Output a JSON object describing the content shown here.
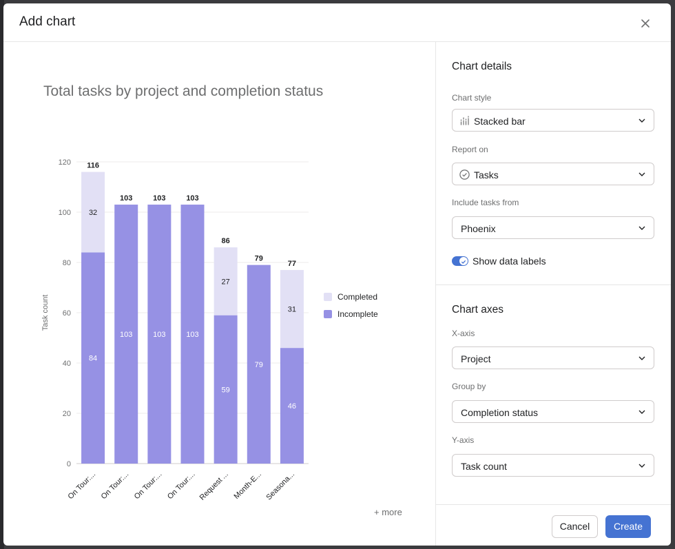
{
  "dialog": {
    "title": "Add chart"
  },
  "chart_data": {
    "type": "bar",
    "stacked": true,
    "title": "Total tasks by project and completion status",
    "xlabel": "",
    "ylabel": "Task count",
    "ylim": [
      0,
      120
    ],
    "yticks": [
      0,
      20,
      40,
      60,
      80,
      100,
      120
    ],
    "grid": true,
    "legend_position": "right",
    "categories": [
      "On Tour:...",
      "On Tour:...",
      "On Tour:...",
      "On Tour:...",
      "Request ...",
      "Month-E...",
      "Seasona..."
    ],
    "series": [
      {
        "name": "Incomplete",
        "color": "#9691e4",
        "values": [
          84,
          103,
          103,
          103,
          59,
          79,
          46
        ]
      },
      {
        "name": "Completed",
        "color": "#e2e0f5",
        "values": [
          32,
          0,
          0,
          0,
          27,
          0,
          31
        ]
      }
    ],
    "totals": [
      116,
      103,
      103,
      103,
      86,
      79,
      77
    ],
    "more_label": "+ more"
  },
  "panel": {
    "details_title": "Chart details",
    "chart_style": {
      "label": "Chart style",
      "value": "Stacked bar",
      "icon": "stacked-bar-icon"
    },
    "report_on": {
      "label": "Report on",
      "value": "Tasks",
      "icon": "check-circle-icon"
    },
    "include_from": {
      "label": "Include tasks from",
      "value": "Phoenix"
    },
    "show_labels": {
      "label": "Show data labels",
      "on": true
    },
    "axes_title": "Chart axes",
    "x_axis": {
      "label": "X-axis",
      "value": "Project"
    },
    "group_by": {
      "label": "Group by",
      "value": "Completion status"
    },
    "y_axis": {
      "label": "Y-axis",
      "value": "Task count"
    }
  },
  "footer": {
    "cancel_label": "Cancel",
    "create_label": "Create"
  },
  "colors": {
    "accent": "#4573d2",
    "incomplete": "#9691e4",
    "completed": "#e2e0f5"
  }
}
